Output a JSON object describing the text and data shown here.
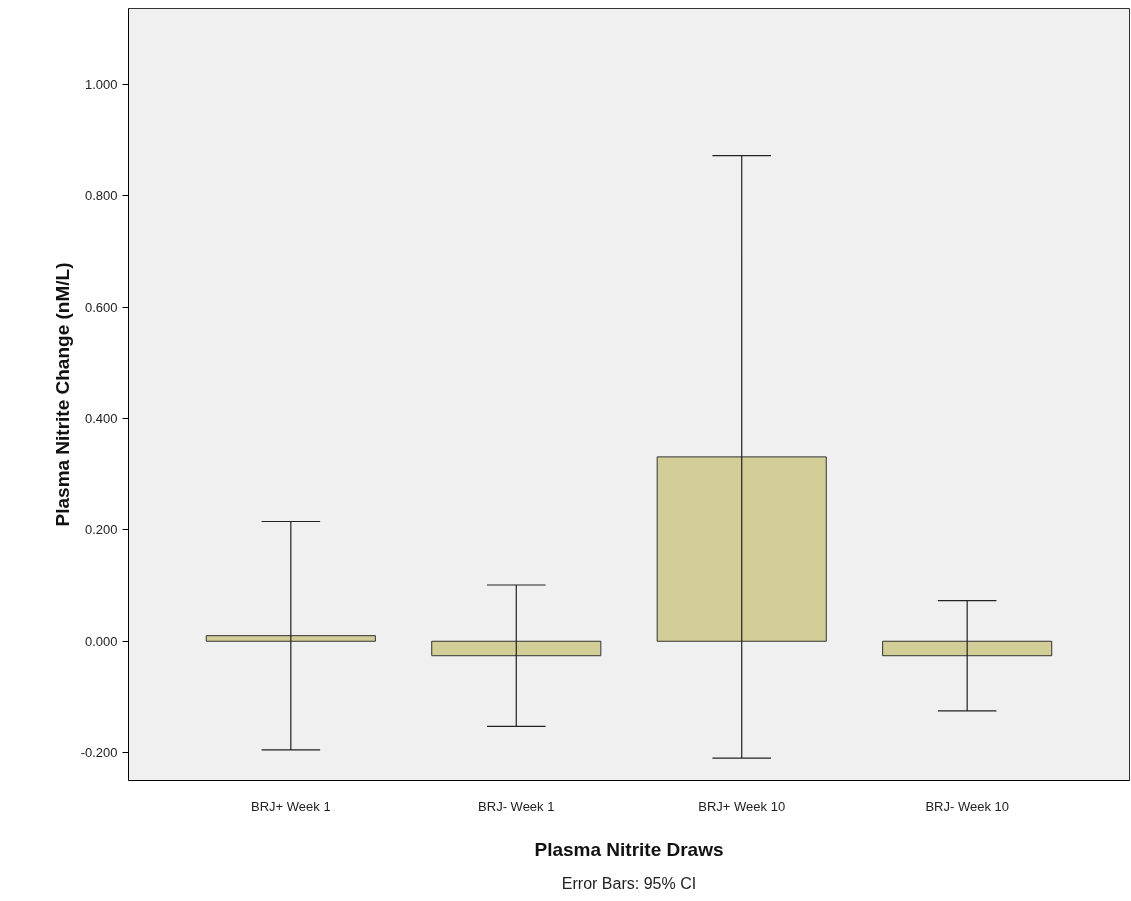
{
  "chart_data": {
    "type": "bar",
    "xlabel": "Plasma Nitrite Draws",
    "ylabel": "Plasma Nitrite Change (nM/L)",
    "categories": [
      "BRJ+ Week 1",
      "BRJ- Week 1",
      "BRJ+ Week 10",
      "BRJ- Week 10"
    ],
    "values": [
      0.01,
      -0.026,
      0.331,
      -0.026
    ],
    "errors": [
      0.205,
      0.127,
      0.541,
      0.099
    ],
    "color": "#d3cd98",
    "ylim": [
      -0.25,
      1.136
    ],
    "yticks": [
      {
        "value": -0.2,
        "label": "-0.200"
      },
      {
        "value": 0,
        "label": "0.000"
      },
      {
        "value": 0.2,
        "label": "0.200"
      },
      {
        "value": 0.4,
        "label": "0.400"
      },
      {
        "value": 0.6,
        "label": "0.600"
      },
      {
        "value": 0.8,
        "label": "0.800"
      },
      {
        "value": 1.0,
        "label": "1.000"
      }
    ],
    "grid": false,
    "annotations": [
      "Error Bars: 95% CI"
    ]
  }
}
